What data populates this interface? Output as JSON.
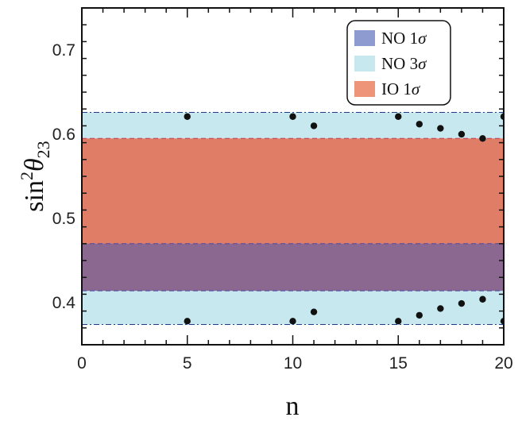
{
  "chart_data": {
    "type": "scatter",
    "xlabel": "n",
    "ylabel_main": "sin",
    "ylabel_sup": "2",
    "ylabel_theta": "θ",
    "ylabel_sub": "23",
    "xlim": [
      0,
      20
    ],
    "ylim": [
      0.35,
      0.75
    ],
    "x_ticks": [
      0,
      5,
      10,
      15,
      20
    ],
    "x_tick_labels": [
      "0",
      "5",
      "10",
      "15",
      "20"
    ],
    "y_ticks": [
      0.4,
      0.5,
      0.6,
      0.7
    ],
    "y_tick_labels": [
      "0.4",
      "0.5",
      "0.6",
      "0.7"
    ],
    "bands": [
      {
        "name": "NO 3σ",
        "ymin": 0.374,
        "ymax": 0.626,
        "color": "#c8e8ef",
        "edge": "#1f3c8c"
      },
      {
        "name": "IO 1σ",
        "ymin": 0.422,
        "ymax": 0.595,
        "color": "#e07d66",
        "edge": "#c23b55"
      },
      {
        "name": "NO 1σ",
        "ymin": 0.414,
        "ymax": 0.47,
        "color": "#8a6890",
        "edge": "#4a4aa0"
      }
    ],
    "points": [
      {
        "x": 5,
        "y": 0.621
      },
      {
        "x": 5,
        "y": 0.378
      },
      {
        "x": 10,
        "y": 0.621
      },
      {
        "x": 10,
        "y": 0.378
      },
      {
        "x": 11,
        "y": 0.61
      },
      {
        "x": 11,
        "y": 0.389
      },
      {
        "x": 15,
        "y": 0.621
      },
      {
        "x": 15,
        "y": 0.378
      },
      {
        "x": 16,
        "y": 0.612
      },
      {
        "x": 16,
        "y": 0.385
      },
      {
        "x": 17,
        "y": 0.607
      },
      {
        "x": 17,
        "y": 0.393
      },
      {
        "x": 18,
        "y": 0.6
      },
      {
        "x": 18,
        "y": 0.399
      },
      {
        "x": 19,
        "y": 0.595
      },
      {
        "x": 19,
        "y": 0.404
      },
      {
        "x": 20,
        "y": 0.621
      },
      {
        "x": 20,
        "y": 0.378
      }
    ],
    "legend": {
      "placement": "top-right",
      "entries": [
        {
          "label_main": "NO 1",
          "label_sym": "σ",
          "color": "#8e9bd0"
        },
        {
          "label_main": "NO 3",
          "label_sym": "σ",
          "color": "#c8e8ef"
        },
        {
          "label_main": "IO 1",
          "label_sym": "σ",
          "color": "#ee9478"
        }
      ]
    },
    "grid": false
  }
}
